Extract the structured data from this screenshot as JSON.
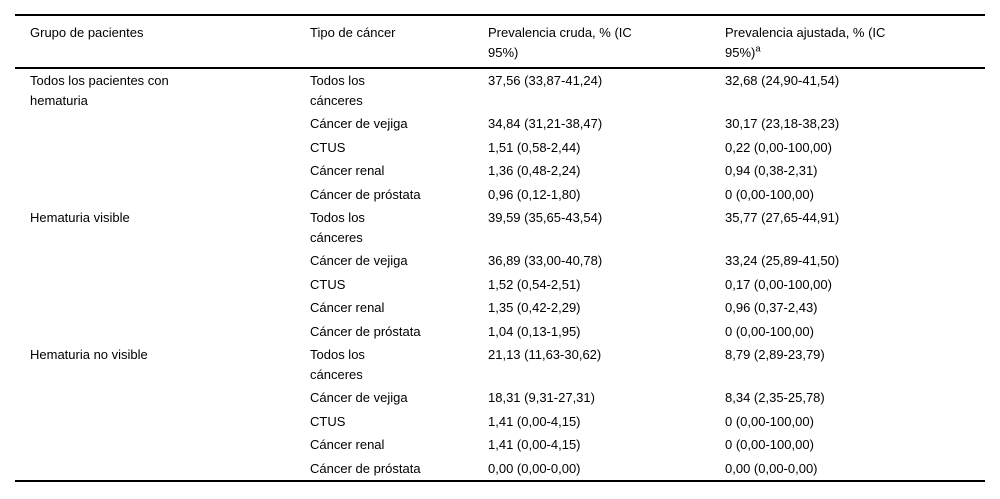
{
  "table": {
    "header": {
      "group": "Grupo de pacientes",
      "cancer_type": "Tipo de cáncer",
      "crude": "Prevalencia cruda, % (IC\n95%)",
      "adjusted": "Prevalencia ajustada, % (IC\n95%)",
      "adjusted_sup": "a"
    },
    "rows": [
      {
        "group": "Todos los pacientes con\nhematuria",
        "cancer": "Todos los\ncánceres",
        "crude": "37,56 (33,87-41,24)",
        "adjusted": "32,68 (24,90-41,54)"
      },
      {
        "group": "",
        "cancer": "Cáncer de vejiga",
        "crude": "34,84 (31,21-38,47)",
        "adjusted": "30,17 (23,18-38,23)"
      },
      {
        "group": "",
        "cancer": "CTUS",
        "crude": "1,51 (0,58-2,44)",
        "adjusted": "0,22 (0,00-100,00)"
      },
      {
        "group": "",
        "cancer": "Cáncer renal",
        "crude": "1,36 (0,48-2,24)",
        "adjusted": "0,94 (0,38-2,31)"
      },
      {
        "group": "",
        "cancer": "Cáncer de próstata",
        "crude": "0,96 (0,12-1,80)",
        "adjusted": "0 (0,00-100,00)"
      },
      {
        "group": "Hematuria visible",
        "cancer": "Todos los\ncánceres",
        "crude": "39,59 (35,65-43,54)",
        "adjusted": "35,77 (27,65-44,91)"
      },
      {
        "group": "",
        "cancer": "Cáncer de vejiga",
        "crude": "36,89 (33,00-40,78)",
        "adjusted": "33,24 (25,89-41,50)"
      },
      {
        "group": "",
        "cancer": "CTUS",
        "crude": "1,52 (0,54-2,51)",
        "adjusted": "0,17 (0,00-100,00)"
      },
      {
        "group": "",
        "cancer": "Cáncer renal",
        "crude": "1,35 (0,42-2,29)",
        "adjusted": "0,96 (0,37-2,43)"
      },
      {
        "group": "",
        "cancer": "Cáncer de próstata",
        "crude": "1,04 (0,13-1,95)",
        "adjusted": "0 (0,00-100,00)"
      },
      {
        "group": "Hematuria no visible",
        "cancer": "Todos los\ncánceres",
        "crude": "21,13 (11,63-30,62)",
        "adjusted": "8,79 (2,89-23,79)"
      },
      {
        "group": "",
        "cancer": "Cáncer de vejiga",
        "crude": "18,31 (9,31-27,31)",
        "adjusted": "8,34 (2,35-25,78)"
      },
      {
        "group": "",
        "cancer": "CTUS",
        "crude": "1,41 (0,00-4,15)",
        "adjusted": "0 (0,00-100,00)"
      },
      {
        "group": "",
        "cancer": "Cáncer renal",
        "crude": "1,41 (0,00-4,15)",
        "adjusted": "0 (0,00-100,00)"
      },
      {
        "group": "",
        "cancer": "Cáncer de próstata",
        "crude": "0,00 (0,00-0,00)",
        "adjusted": "0,00 (0,00-0,00)"
      }
    ]
  },
  "colors": {
    "text": "#000000",
    "rule": "#000000",
    "background": "#ffffff"
  }
}
